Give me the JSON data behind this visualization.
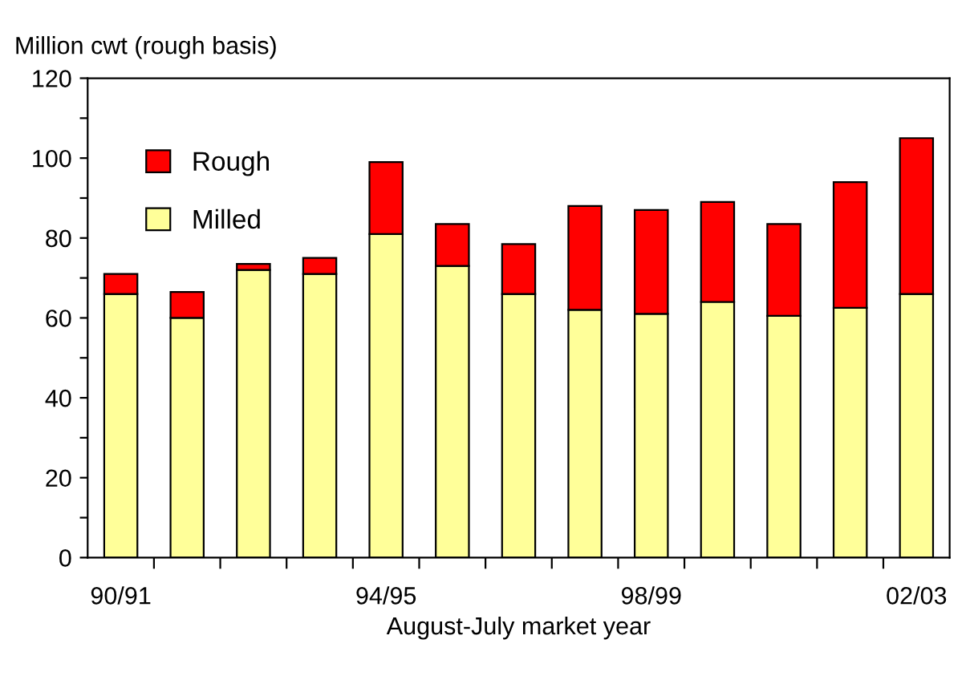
{
  "chart_data": {
    "type": "bar",
    "stacked": true,
    "ylabel": "Million cwt (rough basis)",
    "xlabel": "August-July market year",
    "categories": [
      "90/91",
      null,
      null,
      null,
      "94/95",
      null,
      null,
      null,
      "98/99",
      null,
      null,
      null,
      "02/03"
    ],
    "series": [
      {
        "name": "Milled",
        "color": "#ffff99",
        "values": [
          66,
          60,
          72,
          71,
          81,
          73,
          66,
          62,
          61,
          64,
          60.5,
          62.5,
          66
        ]
      },
      {
        "name": "Rough",
        "color": "#ff0000",
        "values": [
          5,
          6.5,
          1.5,
          4,
          18,
          10.5,
          12.5,
          26,
          26,
          25,
          23,
          31.5,
          39
        ]
      }
    ],
    "ylim": [
      0,
      120
    ],
    "yticks": [
      0,
      {
        "value": 10,
        "label": null
      },
      20,
      {
        "value": 30,
        "label": null
      },
      40,
      {
        "value": 50,
        "label": null
      },
      60,
      {
        "value": 70,
        "label": null
      },
      80,
      {
        "value": 90,
        "label": null
      },
      100,
      {
        "value": 110,
        "label": null
      },
      120
    ],
    "legend": "top left",
    "grid": false
  }
}
